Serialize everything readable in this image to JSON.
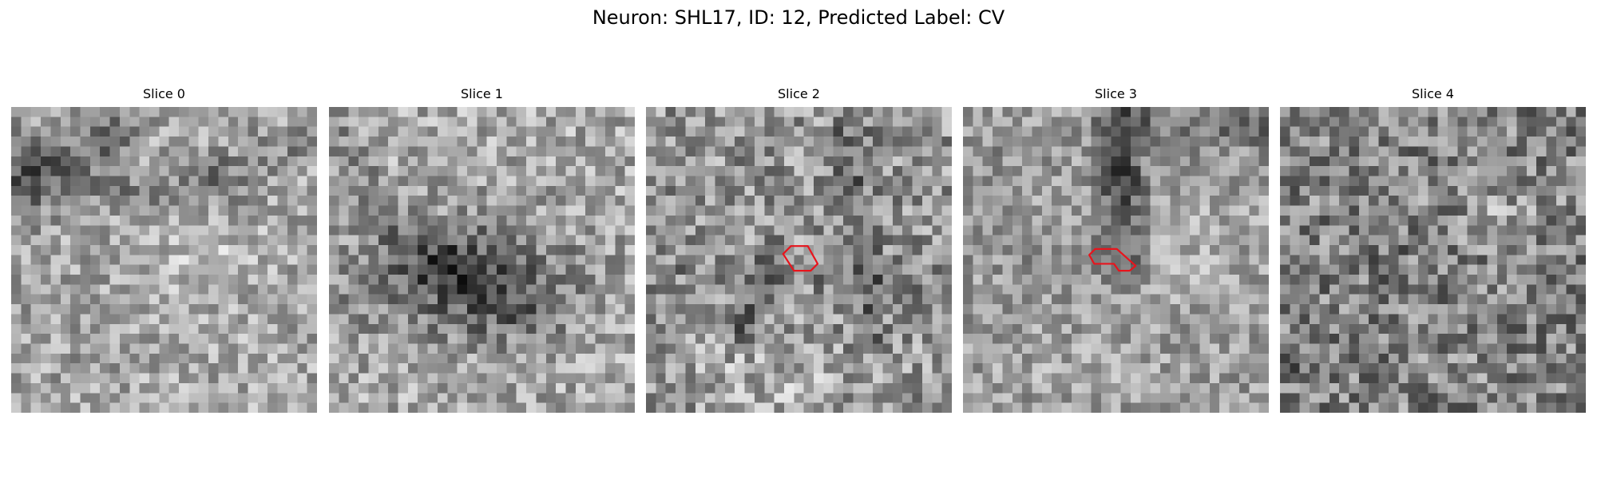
{
  "figure": {
    "title": "Neuron: SHL17, ID: 12, Predicted Label: CV"
  },
  "panels": [
    {
      "title": "Slice 0",
      "has_roi": false
    },
    {
      "title": "Slice 1",
      "has_roi": false
    },
    {
      "title": "Slice 2",
      "has_roi": true
    },
    {
      "title": "Slice 3",
      "has_roi": true
    },
    {
      "title": "Slice 4",
      "has_roi": false
    }
  ],
  "image_grid": {
    "cells_per_side": 31,
    "colormap": "gray"
  },
  "roi_style": {
    "color": "#e8141c",
    "icon": "roi-outline-icon"
  }
}
